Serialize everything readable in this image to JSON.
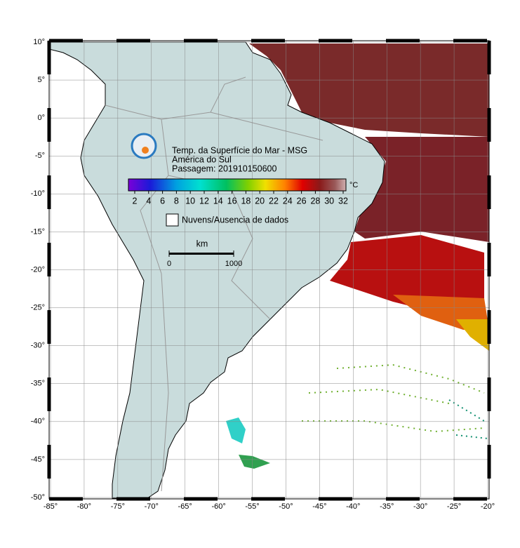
{
  "map": {
    "title": "Temp. da Superfície do Mar - MSG",
    "region": "América do Sul",
    "pass": "Passagem: 201910150600",
    "colorbar": {
      "unit": "°C",
      "ticks": [
        2,
        4,
        6,
        8,
        10,
        12,
        14,
        16,
        18,
        20,
        22,
        24,
        26,
        28,
        30,
        32
      ]
    },
    "legend": "Nuvens/Ausencia de dados",
    "scale": {
      "unit": "km",
      "start": "0",
      "end": "1000"
    },
    "lat_ticks": [
      {
        "value": 10,
        "label": "10°"
      },
      {
        "value": 5,
        "label": "5°"
      },
      {
        "value": 0,
        "label": "0°"
      },
      {
        "value": -5,
        "label": "-5°"
      },
      {
        "value": -10,
        "label": "-10°"
      },
      {
        "value": -15,
        "label": "-15°"
      },
      {
        "value": -20,
        "label": "-20°"
      },
      {
        "value": -25,
        "label": "-25°"
      },
      {
        "value": -30,
        "label": "-30°"
      },
      {
        "value": -35,
        "label": "-35°"
      },
      {
        "value": -40,
        "label": "-40°"
      },
      {
        "value": -45,
        "label": "-45°"
      },
      {
        "value": -50,
        "label": "-50°"
      }
    ],
    "lon_ticks": [
      {
        "value": -85,
        "label": "-85°"
      },
      {
        "value": -80,
        "label": "-80°"
      },
      {
        "value": -75,
        "label": "-75°"
      },
      {
        "value": -70,
        "label": "-70°"
      },
      {
        "value": -65,
        "label": "-65°"
      },
      {
        "value": -60,
        "label": "-60°"
      },
      {
        "value": -55,
        "label": "-55°"
      },
      {
        "value": -50,
        "label": "-50°"
      },
      {
        "value": -45,
        "label": "-45°"
      },
      {
        "value": -40,
        "label": "-40°"
      },
      {
        "value": -35,
        "label": "-35°"
      },
      {
        "value": -30,
        "label": "-30°"
      },
      {
        "value": -25,
        "label": "-25°"
      },
      {
        "value": -20,
        "label": "-20°"
      }
    ]
  }
}
